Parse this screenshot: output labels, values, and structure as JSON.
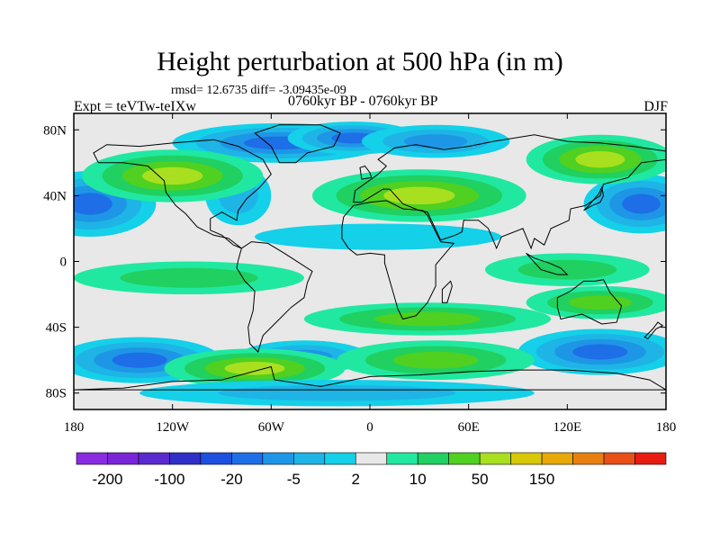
{
  "header": {
    "title": "Height perturbation at 500 hPa (in m)",
    "stats": "rmsd= 12.6735 diff= -3.09435e-09",
    "experiment": "Expt = teVTw-teIXw",
    "period": "0760kyr BP - 0760kyr BP",
    "season": "DJF"
  },
  "map": {
    "projection": "cylindrical-equidistant",
    "lon_range": [
      -180,
      180
    ],
    "lat_range": [
      -90,
      90
    ],
    "x_ticks": [
      {
        "value": -180,
        "label": "180"
      },
      {
        "value": -120,
        "label": "120W"
      },
      {
        "value": -60,
        "label": "60W"
      },
      {
        "value": 0,
        "label": "0"
      },
      {
        "value": 60,
        "label": "60E"
      },
      {
        "value": 120,
        "label": "120E"
      },
      {
        "value": 180,
        "label": "180"
      }
    ],
    "y_ticks": [
      {
        "value": 80,
        "label": "80N"
      },
      {
        "value": 40,
        "label": "40N"
      },
      {
        "value": 0,
        "label": "0"
      },
      {
        "value": -40,
        "label": "40S"
      },
      {
        "value": -80,
        "label": "80S"
      }
    ],
    "field_features": [
      {
        "lon": -170,
        "lat": 35,
        "rlon": 40,
        "rlat": 20,
        "value": -40
      },
      {
        "lon": 165,
        "lat": 35,
        "rlon": 35,
        "rlat": 18,
        "value": -40
      },
      {
        "lon": -80,
        "lat": 40,
        "rlon": 20,
        "rlat": 18,
        "value": -5
      },
      {
        "lon": -55,
        "lat": 72,
        "rlon": 65,
        "rlat": 12,
        "value": -35
      },
      {
        "lon": -10,
        "lat": 75,
        "rlon": 40,
        "rlat": 10,
        "value": -20
      },
      {
        "lon": 40,
        "lat": 73,
        "rlon": 45,
        "rlat": 10,
        "value": -15
      },
      {
        "lon": -120,
        "lat": 52,
        "rlon": 55,
        "rlat": 16,
        "value": 40
      },
      {
        "lon": 30,
        "lat": 40,
        "rlon": 65,
        "rlat": 16,
        "value": 35
      },
      {
        "lon": 140,
        "lat": 62,
        "rlon": 45,
        "rlat": 15,
        "value": 30
      },
      {
        "lon": 5,
        "lat": 15,
        "rlon": 75,
        "rlat": 8,
        "value": -3
      },
      {
        "lon": -110,
        "lat": -10,
        "rlon": 70,
        "rlat": 10,
        "value": 8
      },
      {
        "lon": 120,
        "lat": -5,
        "rlon": 50,
        "rlat": 10,
        "value": 6
      },
      {
        "lon": 35,
        "lat": -35,
        "rlon": 75,
        "rlat": 10,
        "value": 10
      },
      {
        "lon": 140,
        "lat": -25,
        "rlon": 45,
        "rlat": 10,
        "value": 12
      },
      {
        "lon": -140,
        "lat": -60,
        "rlon": 50,
        "rlat": 14,
        "value": -20
      },
      {
        "lon": 140,
        "lat": -55,
        "rlon": 50,
        "rlat": 14,
        "value": -25
      },
      {
        "lon": -40,
        "lat": -58,
        "rlon": 40,
        "rlat": 10,
        "value": -10
      },
      {
        "lon": -70,
        "lat": -65,
        "rlon": 55,
        "rlat": 12,
        "value": 25
      },
      {
        "lon": 40,
        "lat": -60,
        "rlon": 60,
        "rlat": 12,
        "value": 15
      },
      {
        "lon": -20,
        "lat": -80,
        "rlon": 120,
        "rlat": 8,
        "value": -8
      }
    ]
  },
  "colorbar": {
    "colors": [
      "#8a2be2",
      "#7a24d8",
      "#5a2ad0",
      "#3030c8",
      "#1e50e0",
      "#1e6ee8",
      "#1e96e6",
      "#1eb4e6",
      "#14d0e8",
      "#e8e8e8",
      "#20e8a0",
      "#20d060",
      "#50d020",
      "#a8e020",
      "#d8c808",
      "#e8a808",
      "#e88010",
      "#e85018",
      "#e81c10"
    ],
    "levels": [
      -200,
      -150,
      -100,
      -50,
      -20,
      -10,
      -5,
      -2,
      2,
      5,
      10,
      20,
      50,
      100,
      150,
      200
    ],
    "labels": [
      {
        "index": 1,
        "text": "-200"
      },
      {
        "index": 3,
        "text": "-100"
      },
      {
        "index": 5,
        "text": "-20"
      },
      {
        "index": 7,
        "text": "-5"
      },
      {
        "index": 9,
        "text": "2"
      },
      {
        "index": 11,
        "text": "10"
      },
      {
        "index": 13,
        "text": "50"
      },
      {
        "index": 15,
        "text": "150"
      }
    ]
  }
}
